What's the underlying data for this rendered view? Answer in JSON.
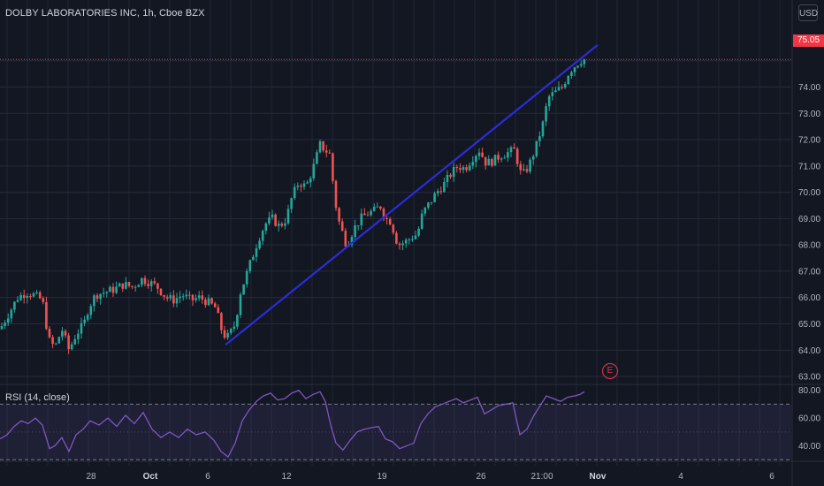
{
  "header": {
    "title": "DOLBY LABORATORIES INC, 1h, Cboe BZX",
    "currency_button": "USD"
  },
  "price_tag": {
    "value": "75.05",
    "color": "#f23645"
  },
  "rsi": {
    "label": "RSI (14, close)",
    "upper_band": 70,
    "lower_band": 30,
    "line_color": "#7e57c2"
  },
  "earnings_marker": {
    "label": "E"
  },
  "colors": {
    "background": "#131722",
    "grid": "#1e2736",
    "up": "#26a69a",
    "down": "#ef5350",
    "trendline": "#2b2cd8",
    "axis_text": "#b2b5be"
  },
  "chart_data": [
    {
      "type": "candlestick",
      "title": "DOLBY LABORATORIES INC, 1h, Cboe BZX",
      "x_tick_labels": [
        "28",
        "Oct",
        "6",
        "12",
        "19",
        "26",
        "21:00",
        "Nov",
        "4",
        "6"
      ],
      "y_ticks": [
        63,
        64,
        65,
        66,
        67,
        68,
        69,
        70,
        71,
        72,
        73,
        74,
        75
      ],
      "y_tick_labels": [
        "63.00",
        "64.00",
        "65.00",
        "66.00",
        "67.00",
        "68.00",
        "69.00",
        "70.00",
        "71.00",
        "72.00",
        "73.00",
        "74.00",
        "75.05"
      ],
      "ylim": [
        62.8,
        76.3
      ],
      "last_price": 75.05,
      "trendline": {
        "from": [
          255,
          64.2
        ],
        "to": [
          676,
          75.6
        ]
      },
      "close_path": [
        [
          0,
          64.8
        ],
        [
          10,
          65.4
        ],
        [
          20,
          66.0
        ],
        [
          30,
          66.2
        ],
        [
          38,
          66.1
        ],
        [
          48,
          65.9
        ],
        [
          55,
          64.4
        ],
        [
          62,
          64.1
        ],
        [
          70,
          64.8
        ],
        [
          78,
          64.0
        ],
        [
          86,
          64.6
        ],
        [
          95,
          65.0
        ],
        [
          100,
          65.6
        ],
        [
          108,
          66.1
        ],
        [
          118,
          66.2
        ],
        [
          128,
          66.3
        ],
        [
          140,
          66.5
        ],
        [
          150,
          66.4
        ],
        [
          160,
          66.7
        ],
        [
          168,
          66.6
        ],
        [
          178,
          66.4
        ],
        [
          188,
          66.0
        ],
        [
          196,
          65.9
        ],
        [
          206,
          66.1
        ],
        [
          216,
          65.9
        ],
        [
          226,
          66.0
        ],
        [
          236,
          65.8
        ],
        [
          244,
          65.6
        ],
        [
          252,
          64.6
        ],
        [
          258,
          64.5
        ],
        [
          266,
          65.0
        ],
        [
          272,
          66.2
        ],
        [
          278,
          66.8
        ],
        [
          285,
          67.5
        ],
        [
          292,
          68.2
        ],
        [
          300,
          68.8
        ],
        [
          308,
          69.0
        ],
        [
          316,
          68.7
        ],
        [
          324,
          69.0
        ],
        [
          330,
          69.8
        ],
        [
          338,
          70.4
        ],
        [
          346,
          70.2
        ],
        [
          354,
          70.9
        ],
        [
          362,
          71.8
        ],
        [
          368,
          71.6
        ],
        [
          374,
          71.4
        ],
        [
          378,
          69.8
        ],
        [
          384,
          68.8
        ],
        [
          392,
          68.0
        ],
        [
          400,
          68.6
        ],
        [
          408,
          69.0
        ],
        [
          416,
          69.2
        ],
        [
          424,
          69.3
        ],
        [
          430,
          69.5
        ],
        [
          436,
          69.0
        ],
        [
          442,
          68.9
        ],
        [
          450,
          68.0
        ],
        [
          458,
          68.1
        ],
        [
          466,
          68.3
        ],
        [
          472,
          68.4
        ],
        [
          478,
          69.2
        ],
        [
          486,
          69.6
        ],
        [
          494,
          70.0
        ],
        [
          502,
          70.3
        ],
        [
          510,
          70.7
        ],
        [
          518,
          71.0
        ],
        [
          526,
          70.9
        ],
        [
          534,
          71.3
        ],
        [
          542,
          71.6
        ],
        [
          550,
          71.1
        ],
        [
          558,
          71.2
        ],
        [
          566,
          71.4
        ],
        [
          574,
          71.5
        ],
        [
          582,
          71.6
        ],
        [
          590,
          70.6
        ],
        [
          598,
          71.0
        ],
        [
          606,
          71.7
        ],
        [
          614,
          72.6
        ],
        [
          620,
          73.6
        ],
        [
          628,
          73.8
        ],
        [
          636,
          74.0
        ],
        [
          644,
          74.6
        ],
        [
          650,
          74.8
        ],
        [
          656,
          75.0
        ],
        [
          661,
          75.05
        ]
      ]
    },
    {
      "type": "line",
      "title": "RSI (14, close)",
      "y_ticks": [
        40,
        60,
        80
      ],
      "y_tick_labels": [
        "40.00",
        "60.00",
        "80.00"
      ],
      "ylim": [
        27,
        83
      ],
      "bands": [
        30,
        70
      ],
      "values_path": [
        [
          0,
          45
        ],
        [
          8,
          48
        ],
        [
          16,
          54
        ],
        [
          24,
          58
        ],
        [
          32,
          56
        ],
        [
          40,
          60
        ],
        [
          48,
          55
        ],
        [
          56,
          38
        ],
        [
          62,
          40
        ],
        [
          70,
          46
        ],
        [
          78,
          36
        ],
        [
          86,
          48
        ],
        [
          94,
          52
        ],
        [
          102,
          58
        ],
        [
          112,
          55
        ],
        [
          122,
          60
        ],
        [
          132,
          54
        ],
        [
          142,
          62
        ],
        [
          152,
          56
        ],
        [
          162,
          64
        ],
        [
          172,
          52
        ],
        [
          182,
          46
        ],
        [
          192,
          50
        ],
        [
          202,
          46
        ],
        [
          212,
          52
        ],
        [
          222,
          48
        ],
        [
          232,
          50
        ],
        [
          242,
          44
        ],
        [
          250,
          36
        ],
        [
          258,
          32
        ],
        [
          266,
          42
        ],
        [
          274,
          58
        ],
        [
          282,
          66
        ],
        [
          290,
          72
        ],
        [
          298,
          76
        ],
        [
          306,
          78
        ],
        [
          314,
          73
        ],
        [
          322,
          74
        ],
        [
          330,
          78
        ],
        [
          338,
          80
        ],
        [
          346,
          74
        ],
        [
          354,
          77
        ],
        [
          362,
          79
        ],
        [
          368,
          72
        ],
        [
          374,
          55
        ],
        [
          380,
          42
        ],
        [
          388,
          37
        ],
        [
          396,
          44
        ],
        [
          404,
          50
        ],
        [
          412,
          52
        ],
        [
          420,
          53
        ],
        [
          428,
          54
        ],
        [
          436,
          45
        ],
        [
          444,
          43
        ],
        [
          452,
          38
        ],
        [
          460,
          40
        ],
        [
          468,
          42
        ],
        [
          476,
          56
        ],
        [
          484,
          63
        ],
        [
          492,
          68
        ],
        [
          500,
          70
        ],
        [
          508,
          72
        ],
        [
          516,
          74
        ],
        [
          524,
          71
        ],
        [
          532,
          73
        ],
        [
          540,
          75
        ],
        [
          548,
          63
        ],
        [
          556,
          66
        ],
        [
          564,
          69
        ],
        [
          572,
          70
        ],
        [
          580,
          71
        ],
        [
          588,
          48
        ],
        [
          596,
          52
        ],
        [
          604,
          62
        ],
        [
          612,
          70
        ],
        [
          618,
          76
        ],
        [
          626,
          74
        ],
        [
          634,
          72
        ],
        [
          642,
          75
        ],
        [
          650,
          76
        ],
        [
          656,
          77
        ],
        [
          661,
          79
        ]
      ]
    }
  ]
}
